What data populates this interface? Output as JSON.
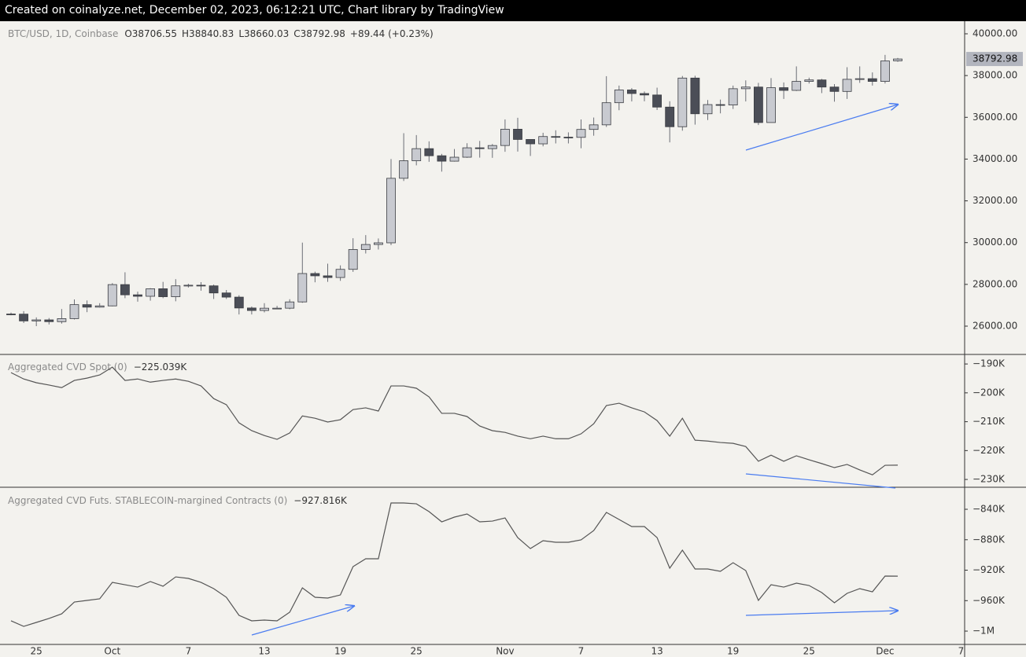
{
  "header": "Created on coinalyze.net, December 02, 2023, 06:12:21 UTC, Chart library by TradingView",
  "chart_data": [
    {
      "type": "candlestick",
      "title": "BTC/USD, 1D, Coinbase",
      "legend": [
        "O38706.55",
        "H38840.83",
        "L38660.03",
        "C38792.98",
        "+89.44 (+0.23%)"
      ],
      "categories": [
        null,
        null,
        "25",
        null,
        null,
        null,
        null,
        null,
        "Oct",
        null,
        null,
        null,
        null,
        null,
        "7",
        null,
        null,
        null,
        null,
        null,
        "13",
        null,
        null,
        null,
        null,
        null,
        "19",
        null,
        null,
        null,
        null,
        null,
        "25",
        null,
        null,
        null,
        null,
        null,
        null,
        "Nov",
        null,
        null,
        null,
        null,
        null,
        "7",
        null,
        null,
        null,
        null,
        null,
        "13",
        null,
        null,
        null,
        null,
        null,
        "19",
        null,
        null,
        null,
        null,
        null,
        "25",
        null,
        null,
        null,
        null,
        null,
        "Dec",
        null,
        null,
        null,
        null,
        null,
        "7"
      ],
      "open": [
        26580,
        26575,
        26250,
        26300,
        26215,
        26360,
        27030,
        26910,
        26970,
        27990,
        27500,
        27430,
        27790,
        27410,
        27930,
        27960,
        27930,
        27590,
        27390,
        26870,
        26750,
        26860,
        26860,
        27160,
        28520,
        28410,
        28330,
        28720,
        29670,
        29910,
        29990,
        33080,
        33920,
        34500,
        34160,
        33900,
        34090,
        34540,
        34500,
        34650,
        35430,
        34940,
        34730,
        35080,
        35050,
        35040,
        35420,
        35640,
        36700,
        37310,
        37140,
        37070,
        36490,
        35550,
        37880,
        36170,
        36610,
        36590,
        37370,
        37450,
        35750,
        37420,
        37290,
        37720,
        37790,
        37450,
        37240,
        37820,
        37850,
        37720,
        38706.55,
        null,
        null,
        null,
        null,
        null
      ],
      "high": [
        26650,
        26720,
        26420,
        26390,
        26820,
        27280,
        27230,
        27100,
        28060,
        28580,
        27650,
        27820,
        28120,
        28250,
        28030,
        28110,
        27990,
        27730,
        27480,
        26940,
        27100,
        26970,
        27290,
        30000,
        28610,
        28990,
        28910,
        30210,
        30360,
        30200,
        34000,
        35240,
        35150,
        34850,
        34250,
        34480,
        34760,
        34870,
        34720,
        35900,
        35980,
        34940,
        35260,
        35380,
        35280,
        35900,
        35990,
        37970,
        37520,
        37400,
        37240,
        37420,
        36770,
        37980,
        37990,
        36830,
        36850,
        37520,
        37770,
        37650,
        37880,
        37670,
        38440,
        37900,
        37840,
        37590,
        38400,
        38440,
        38150,
        38990,
        38840.83,
        null,
        null,
        null,
        null,
        null
      ],
      "low": [
        26520,
        26150,
        26000,
        26080,
        26120,
        26320,
        26670,
        26890,
        26950,
        27340,
        27170,
        27220,
        27340,
        27190,
        27850,
        27700,
        27300,
        27300,
        26560,
        26560,
        26660,
        26810,
        26810,
        27120,
        28100,
        28120,
        28170,
        28600,
        29480,
        29670,
        29880,
        32950,
        33700,
        33870,
        33400,
        33880,
        34060,
        34070,
        34060,
        34350,
        34360,
        34150,
        34610,
        34750,
        34750,
        34520,
        35120,
        35540,
        36340,
        36760,
        36770,
        36350,
        34800,
        35360,
        35650,
        35870,
        36190,
        36400,
        36760,
        35630,
        35750,
        36880,
        37260,
        37620,
        37160,
        36750,
        36880,
        37650,
        37520,
        37620,
        38660.03,
        null,
        null,
        null,
        null,
        null
      ],
      "close": [
        26575,
        26250,
        26300,
        26215,
        26360,
        27030,
        26910,
        26970,
        27990,
        27500,
        27430,
        27790,
        27410,
        27930,
        27960,
        27930,
        27590,
        27390,
        26870,
        26750,
        26860,
        26860,
        27160,
        28520,
        28410,
        28330,
        28720,
        29670,
        29910,
        29990,
        33080,
        33920,
        34500,
        34160,
        33900,
        34090,
        34540,
        34500,
        34650,
        35430,
        34940,
        34730,
        35080,
        35050,
        35040,
        35420,
        35640,
        36700,
        37310,
        37140,
        37070,
        36490,
        35550,
        37880,
        36170,
        36610,
        36590,
        37370,
        37450,
        35750,
        37420,
        37290,
        37720,
        37790,
        37450,
        37240,
        37820,
        37850,
        37720,
        38700,
        38792.98,
        null,
        null,
        null,
        null,
        null
      ],
      "up_color": "#c8cad0",
      "down_color": "#4b4e57",
      "grid": false,
      "ylim": [
        24683,
        40602
      ],
      "yticks": [
        {
          "value": 26000,
          "label": "26000.00"
        },
        {
          "value": 28000,
          "label": "28000.00"
        },
        {
          "value": 30000,
          "label": "30000.00"
        },
        {
          "value": 32000,
          "label": "32000.00"
        },
        {
          "value": 34000,
          "label": "34000.00"
        },
        {
          "value": 36000,
          "label": "36000.00"
        },
        {
          "value": 38000,
          "label": "38000.00"
        },
        {
          "value": 40000,
          "label": "40000.00"
        }
      ]
    },
    {
      "type": "line",
      "title": "Aggregated CVD Spot (0)",
      "last_value_label": "−225.039K",
      "grid": false,
      "series": [
        {
          "color": "#555555",
          "values": [
            -193.0,
            -195.2,
            -196.5,
            -197.3,
            -198.2,
            -195.7,
            -194.9,
            -193.8,
            -191.1,
            -195.7,
            -195.2,
            -196.3,
            -195.7,
            -195.2,
            -196.0,
            -197.6,
            -202.0,
            -204.1,
            -210.4,
            -213.1,
            -214.8,
            -216.1,
            -213.9,
            -208.0,
            -208.8,
            -210.1,
            -209.3,
            -205.8,
            -205.2,
            -206.3,
            -197.6,
            -197.6,
            -198.4,
            -201.4,
            -207.1,
            -207.1,
            -208.2,
            -211.5,
            -213.1,
            -213.7,
            -215.0,
            -215.9,
            -215.0,
            -215.9,
            -215.9,
            -214.2,
            -210.7,
            -204.4,
            -203.6,
            -205.2,
            -206.6,
            -209.6,
            -215.0,
            -208.8,
            -216.4,
            -216.7,
            -217.2,
            -217.5,
            -218.6,
            -223.7,
            -221.6,
            -223.7,
            -221.8,
            -223.2,
            -224.5,
            -225.9,
            -224.8,
            -226.7,
            -228.4,
            -225.1,
            -225.039,
            null,
            null,
            null,
            null,
            null
          ]
        }
      ],
      "ylim": [
        -232.7,
        -186.7
      ],
      "yticks": [
        {
          "value": -190,
          "label": "−190K"
        },
        {
          "value": -200,
          "label": "−200K"
        },
        {
          "value": -210,
          "label": "−210K"
        },
        {
          "value": -220,
          "label": "−220K"
        },
        {
          "value": -230,
          "label": "−230K"
        }
      ]
    },
    {
      "type": "line",
      "title": "Aggregated CVD Futs. STABLECOIN-margined Contracts (0)",
      "last_value_label": "−927.816K",
      "grid": false,
      "series": [
        {
          "color": "#555555",
          "values": [
            -986.5,
            -993.8,
            -988.6,
            -983.4,
            -977.3,
            -961.8,
            -959.7,
            -957.6,
            -936.0,
            -939.1,
            -942.2,
            -934.9,
            -941.1,
            -928.8,
            -930.8,
            -936.0,
            -944.2,
            -955.6,
            -979.3,
            -986.5,
            -985.5,
            -986.5,
            -975.2,
            -943.2,
            -955.6,
            -956.6,
            -952.5,
            -915.3,
            -905.0,
            -905.0,
            -831.7,
            -831.7,
            -832.8,
            -843.1,
            -856.5,
            -850.3,
            -846.2,
            -856.5,
            -855.5,
            -851.4,
            -877.2,
            -891.6,
            -881.3,
            -883.3,
            -883.3,
            -880.2,
            -867.9,
            -844.1,
            -853.4,
            -862.7,
            -862.7,
            -877.2,
            -917.4,
            -893.7,
            -918.4,
            -918.4,
            -921.5,
            -910.2,
            -920.5,
            -959.7,
            -939.1,
            -942.2,
            -937.0,
            -940.1,
            -949.4,
            -962.8,
            -950.4,
            -944.2,
            -948.4,
            -927.7,
            -927.816,
            null,
            null,
            null,
            null,
            null
          ]
        }
      ],
      "ylim": [
        -1017.5,
        -812.1
      ],
      "yticks": [
        {
          "value": -840,
          "label": "−840K"
        },
        {
          "value": -880,
          "label": "−880K"
        },
        {
          "value": -920,
          "label": "−920K"
        },
        {
          "value": -960,
          "label": "−960K"
        },
        {
          "value": -1000,
          "label": "−1M"
        }
      ]
    }
  ]
}
